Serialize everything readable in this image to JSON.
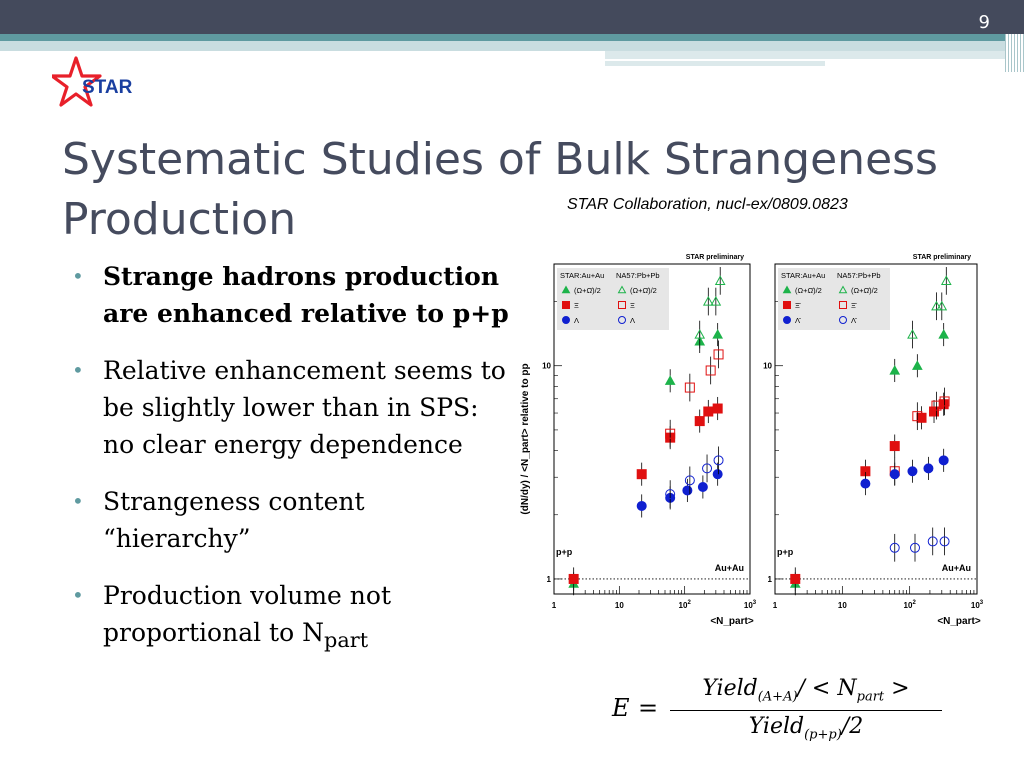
{
  "slide": {
    "page_number": "9",
    "logo_text": "STAR",
    "title": "Systematic Studies of Bulk Strangeness Production",
    "citation": "STAR Collaboration,  nucl-ex/0809.0823",
    "bullets": [
      {
        "text": "Strange hadrons production are enhanced relative to p+p",
        "bold": true
      },
      {
        "text": "Relative enhancement seems to be slightly lower than in SPS: no clear energy dependence",
        "bold": false
      },
      {
        "text": "Strangeness content “hierarchy”",
        "bold": false
      },
      {
        "text": "Production volume not proportional to N",
        "sub": "part",
        "bold": false
      }
    ],
    "formula": {
      "lhs": "E",
      "eq": "=",
      "num_a": "Yield",
      "num_a_sub": "(A+A)",
      "num_b": "/ < N",
      "num_b_sub": "part",
      "num_c": " >",
      "den_a": "Yield",
      "den_a_sub": "(p+p)",
      "den_b": "/2"
    }
  },
  "colors": {
    "accent": "#5f9aa0",
    "title": "#454b5e",
    "topbar": "#444a5c",
    "star_red": "#e8202a",
    "star_blue": "#1a3fa0",
    "green": "#1db34a",
    "red": "#e01010",
    "blue": "#1020d0"
  },
  "chart_data": [
    {
      "type": "scatter",
      "panel_label": "STAR preliminary",
      "ylabel": "(dN/dy) / <N_part> relative to pp",
      "xlabel": "<N_part>",
      "xscale": "log",
      "yscale": "log",
      "xlim": [
        1,
        1000
      ],
      "ylim": [
        0.85,
        30
      ],
      "xticks": [
        "1",
        "10",
        "10^2",
        "10^3"
      ],
      "yticks": [
        "1",
        "10"
      ],
      "annotations": [
        "p+p",
        "Au+Au"
      ],
      "legend": {
        "header": [
          "STAR:Au+Au",
          "NA57:Pb+Pb"
        ],
        "entries": [
          "(Ω+Ω̄)/2",
          "(Ω+Ω̄)/2",
          "Ξ",
          "Ξ",
          "Λ",
          "Λ"
        ],
        "position": "top-left"
      },
      "series": [
        {
          "name": "STAR (Ω+Ω̄)/2",
          "marker": "triangle-filled",
          "color": "#1db34a",
          "x": [
            2,
            60,
            170,
            320
          ],
          "y": [
            0.95,
            8.5,
            13,
            14
          ]
        },
        {
          "name": "NA57 (Ω+Ω̄)/2",
          "marker": "triangle-open",
          "color": "#1db34a",
          "x": [
            170,
            230,
            300,
            350
          ],
          "y": [
            14,
            20,
            20,
            25
          ]
        },
        {
          "name": "STAR Ξ",
          "marker": "square-filled",
          "color": "#e01010",
          "x": [
            2,
            22,
            60,
            170,
            230,
            320
          ],
          "y": [
            1,
            3.1,
            4.6,
            5.5,
            6.1,
            6.3
          ]
        },
        {
          "name": "NA57 Ξ",
          "marker": "square-open",
          "color": "#e01010",
          "x": [
            60,
            120,
            250,
            330
          ],
          "y": [
            4.8,
            7.9,
            9.5,
            11.3
          ]
        },
        {
          "name": "STAR Λ",
          "marker": "circle-filled",
          "color": "#1020d0",
          "x": [
            22,
            60,
            110,
            190,
            320
          ],
          "y": [
            2.2,
            2.4,
            2.6,
            2.7,
            3.1
          ]
        },
        {
          "name": "NA57 Λ",
          "marker": "circle-open",
          "color": "#1020d0",
          "x": [
            60,
            120,
            220,
            330
          ],
          "y": [
            2.5,
            2.9,
            3.3,
            3.6
          ]
        }
      ]
    },
    {
      "type": "scatter",
      "panel_label": "STAR preliminary",
      "ylabel": "",
      "xlabel": "<N_part>",
      "xscale": "log",
      "yscale": "log",
      "xlim": [
        1,
        1000
      ],
      "ylim": [
        0.85,
        30
      ],
      "xticks": [
        "1",
        "10",
        "10^2",
        "10^3"
      ],
      "yticks": [
        "1",
        "10"
      ],
      "annotations": [
        "p+p",
        "Au+Au"
      ],
      "legend": {
        "header": [
          "STAR:Au+Au",
          "NA57:Pb+Pb"
        ],
        "entries": [
          "(Ω+Ω̄)/2",
          "(Ω+Ω̄)/2",
          "Ξ̄",
          "Ξ̄",
          "Λ̄",
          "Λ̄"
        ],
        "position": "top-left"
      },
      "series": [
        {
          "name": "STAR (Ω+Ω̄)/2",
          "marker": "triangle-filled",
          "color": "#1db34a",
          "x": [
            2,
            60,
            130,
            320
          ],
          "y": [
            0.95,
            9.5,
            10,
            14
          ]
        },
        {
          "name": "NA57 (Ω+Ω̄)/2",
          "marker": "triangle-open",
          "color": "#1db34a",
          "x": [
            110,
            250,
            300,
            350
          ],
          "y": [
            14,
            19,
            19,
            25
          ]
        },
        {
          "name": "STAR Ξ̄",
          "marker": "square-filled",
          "color": "#e01010",
          "x": [
            2,
            22,
            60,
            150,
            230,
            320
          ],
          "y": [
            1,
            3.2,
            4.2,
            5.7,
            6.1,
            6.6
          ]
        },
        {
          "name": "NA57 Ξ̄",
          "marker": "square-open",
          "color": "#e01010",
          "x": [
            60,
            130,
            250,
            330
          ],
          "y": [
            3.2,
            5.8,
            6.5,
            6.8
          ]
        },
        {
          "name": "STAR Λ̄",
          "marker": "circle-filled",
          "color": "#1020d0",
          "x": [
            22,
            60,
            110,
            190,
            320
          ],
          "y": [
            2.8,
            3.1,
            3.2,
            3.3,
            3.6
          ]
        },
        {
          "name": "NA57 Λ̄",
          "marker": "circle-open",
          "color": "#1020d0",
          "x": [
            60,
            120,
            220,
            330
          ],
          "y": [
            1.4,
            1.4,
            1.5,
            1.5
          ]
        }
      ]
    }
  ]
}
